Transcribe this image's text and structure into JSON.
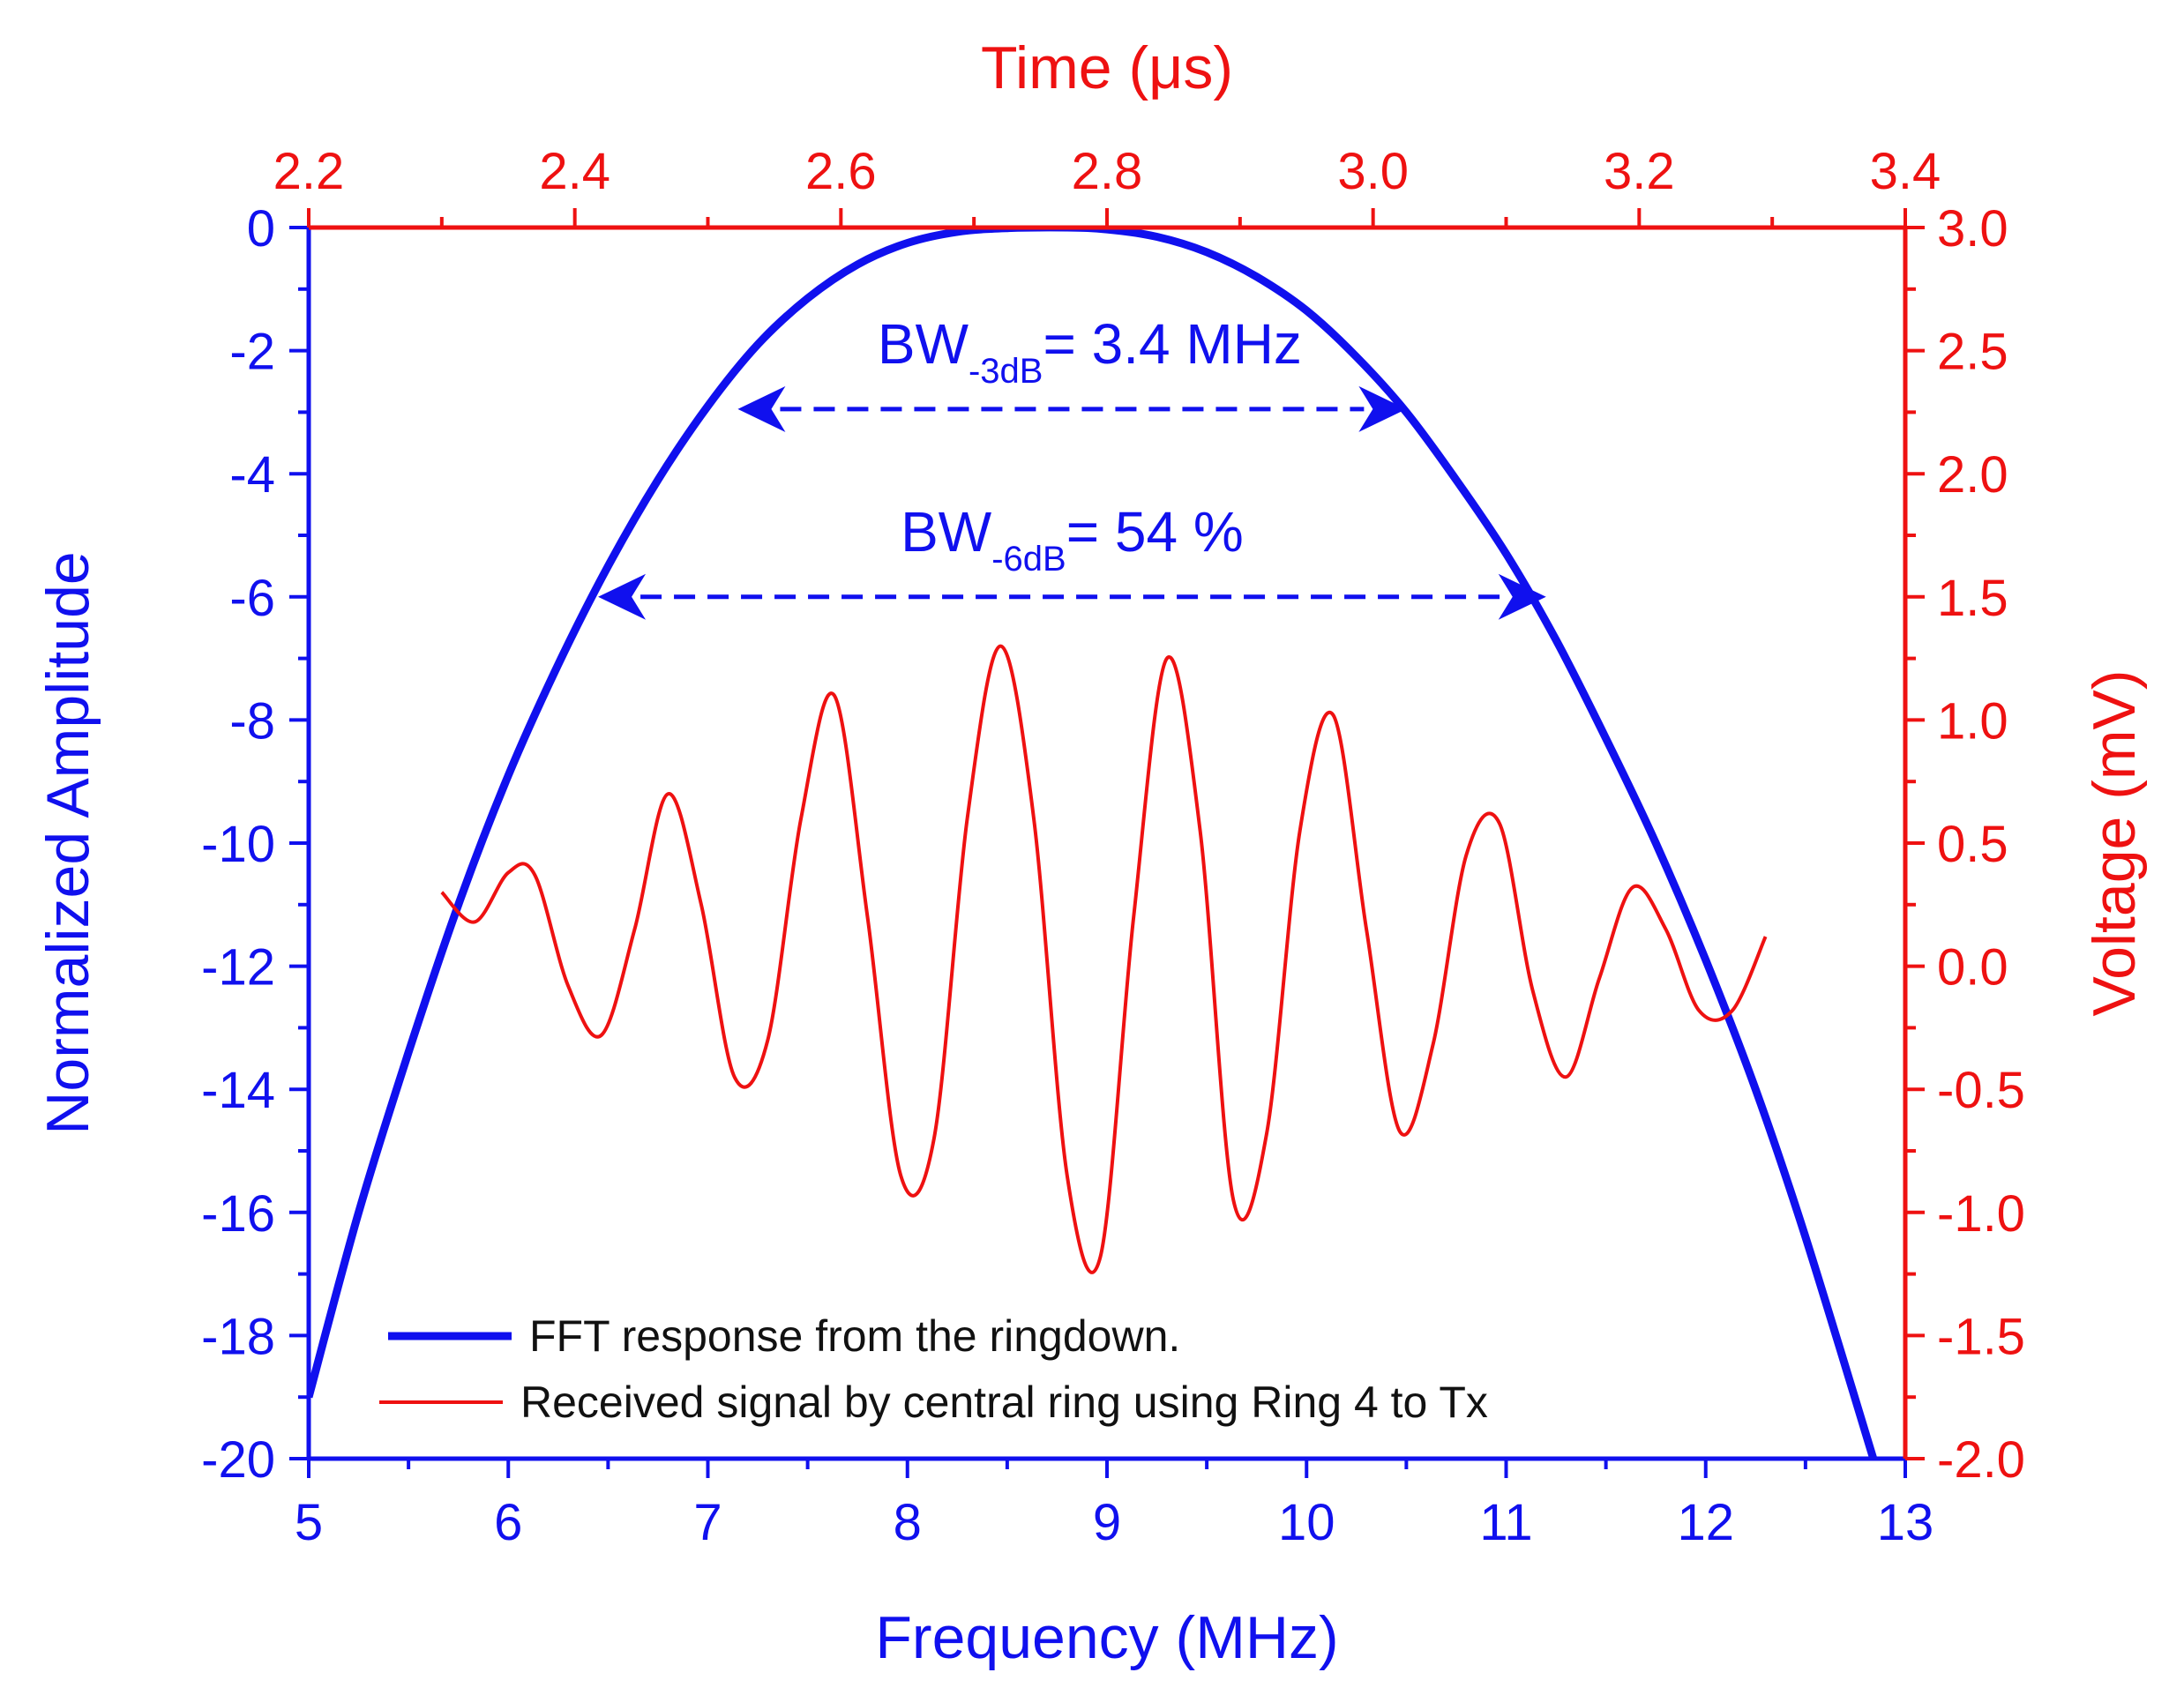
{
  "chart_data": {
    "type": "line",
    "title": "",
    "xlabel": "Frequency (MHz)",
    "ylabel": "Normalized Amplitude",
    "x2label": "Time (μs)",
    "y2label": "Voltage (mV)",
    "xlim": [
      5,
      13
    ],
    "ylim": [
      -20,
      0
    ],
    "x2lim": [
      2.2,
      3.4
    ],
    "y2lim": [
      -2.0,
      3.0
    ],
    "x_ticks": [
      5,
      6,
      7,
      8,
      9,
      10,
      11,
      12,
      13
    ],
    "y_ticks": [
      0,
      -2,
      -4,
      -6,
      -8,
      -10,
      -12,
      -14,
      -16,
      -18,
      -20
    ],
    "x2_ticks": [
      "2.2",
      "2.4",
      "2.6",
      "2.8",
      "3.0",
      "3.2",
      "3.4"
    ],
    "y2_ticks": [
      "3.0",
      "2.5",
      "2.0",
      "1.5",
      "1.0",
      "0.5",
      "0.0",
      "-0.5",
      "-1.0",
      "-1.5",
      "-2.0"
    ],
    "colors": {
      "primary": "#1010ee",
      "secondary": "#ee1111"
    },
    "series": [
      {
        "name": "FFT response from the ringdown.",
        "axis": "bottom-left",
        "color": "#1010ee",
        "x": [
          5.0,
          5.25,
          5.5,
          5.75,
          6.0,
          6.25,
          6.5,
          6.75,
          7.0,
          7.25,
          7.5,
          7.75,
          8.0,
          8.25,
          8.5,
          8.8,
          9.0,
          9.25,
          9.5,
          9.75,
          10.0,
          10.25,
          10.5,
          10.75,
          11.0,
          11.25,
          11.5,
          11.75,
          12.0,
          12.25,
          12.5,
          12.84
        ],
        "y": [
          -19.0,
          -16.0,
          -13.4,
          -11.0,
          -8.9,
          -7.1,
          -5.5,
          -4.1,
          -2.9,
          -1.9,
          -1.15,
          -0.6,
          -0.25,
          -0.07,
          -0.01,
          0.0,
          -0.03,
          -0.15,
          -0.4,
          -0.8,
          -1.35,
          -2.1,
          -3.0,
          -4.1,
          -5.3,
          -6.7,
          -8.3,
          -10.0,
          -11.9,
          -14.0,
          -16.4,
          -20.0
        ]
      },
      {
        "name": "Received signal by central ring using Ring 4 to Tx",
        "axis": "top-right",
        "color": "#ee1111",
        "x": [
          2.3,
          2.325,
          2.35,
          2.37,
          2.395,
          2.42,
          2.445,
          2.47,
          2.495,
          2.52,
          2.545,
          2.57,
          2.595,
          2.62,
          2.645,
          2.67,
          2.695,
          2.72,
          2.745,
          2.77,
          2.795,
          2.82,
          2.845,
          2.87,
          2.895,
          2.92,
          2.945,
          2.97,
          2.995,
          3.02,
          3.045,
          3.07,
          3.095,
          3.12,
          3.145,
          3.17,
          3.195,
          3.22,
          3.245,
          3.27,
          3.295
        ],
        "y": [
          0.3,
          0.18,
          0.38,
          0.37,
          -0.08,
          -0.28,
          0.15,
          0.7,
          0.25,
          -0.45,
          -0.3,
          0.6,
          1.1,
          0.2,
          -0.85,
          -0.7,
          0.6,
          1.3,
          0.6,
          -0.85,
          -1.18,
          0.2,
          1.25,
          0.55,
          -0.95,
          -0.68,
          0.55,
          1.02,
          0.15,
          -0.67,
          -0.32,
          0.45,
          0.58,
          -0.1,
          -0.45,
          -0.05,
          0.32,
          0.15,
          -0.18,
          -0.18,
          0.12
        ]
      }
    ],
    "annotations": [
      {
        "base": "BW",
        "sub": "-3dB",
        "rest": "= 3.4 MHz",
        "x_from": 7.15,
        "x_to": 10.5,
        "y": -2.95
      },
      {
        "base": "BW",
        "sub": "-6dB",
        "rest": "= 54 %",
        "x_from": 6.45,
        "x_to": 11.2,
        "y": -6.0
      }
    ],
    "legend_position": "bottom-left"
  }
}
